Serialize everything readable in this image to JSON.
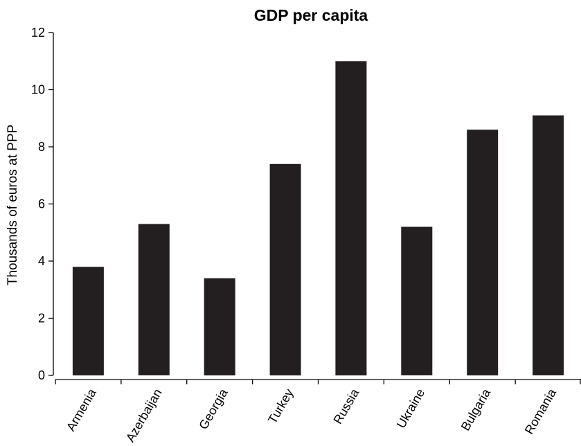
{
  "chart_data": {
    "type": "bar",
    "title": "GDP per capita",
    "xlabel": "",
    "ylabel": "Thousands of euros at PPP",
    "categories": [
      "Armenia",
      "Azerbaijan",
      "Georgia",
      "Turkey",
      "Russia",
      "Ukraine",
      "Bulgaria",
      "Romania"
    ],
    "values": [
      3.8,
      5.3,
      3.4,
      7.4,
      11.0,
      5.2,
      8.6,
      9.1
    ],
    "ylim": [
      0,
      12
    ],
    "yticks": [
      0,
      2,
      4,
      6,
      8,
      10,
      12
    ],
    "ytick_labels": [
      "0",
      "2",
      "4",
      "6",
      "8",
      "10",
      "12"
    ],
    "grid": false,
    "legend": "none",
    "bar_color": "#231f20"
  }
}
